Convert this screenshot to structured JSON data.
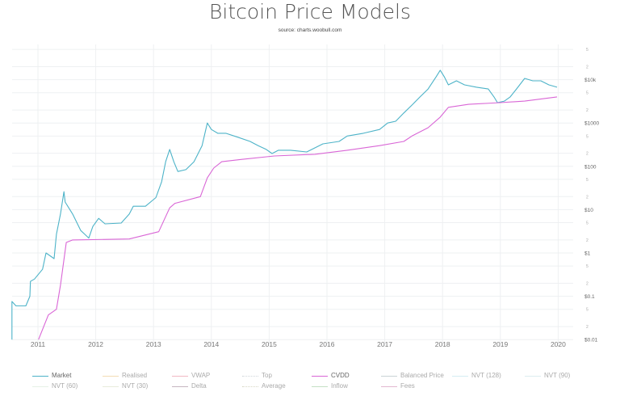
{
  "chart_data": {
    "type": "line",
    "title": "Bitcoin Price Models",
    "subtitle": "source: charts.woobull.com",
    "xlabel": "",
    "ylabel": "",
    "x_ticks": [
      "2011",
      "2012",
      "2013",
      "2014",
      "2015",
      "2016",
      "2017",
      "2018",
      "2019",
      "2020"
    ],
    "xlim": [
      2010.55,
      2020.1
    ],
    "y_scale": "log",
    "ylim": [
      0.01,
      80000
    ],
    "y_major_ticks": [
      {
        "value": 0.01,
        "label": "$0.01"
      },
      {
        "value": 0.1,
        "label": "$0.1"
      },
      {
        "value": 1,
        "label": "$1"
      },
      {
        "value": 10,
        "label": "$10"
      },
      {
        "value": 100,
        "label": "$100"
      },
      {
        "value": 1000,
        "label": "$1000"
      },
      {
        "value": 10000,
        "label": "$10k"
      }
    ],
    "y_minor_labels": [
      "2",
      "5"
    ],
    "grid": true,
    "legend_position": "bottom",
    "series": [
      {
        "name": "Market",
        "color": "#4db3c8",
        "visible": true,
        "x": [
          2010.55,
          2010.55,
          2010.62,
          2010.79,
          2010.86,
          2010.87,
          2010.94,
          2011.08,
          2011.14,
          2011.28,
          2011.32,
          2011.39,
          2011.45,
          2011.47,
          2011.6,
          2011.74,
          2011.81,
          2011.88,
          2011.95,
          2012.05,
          2012.16,
          2012.44,
          2012.58,
          2012.65,
          2012.86,
          2013.04,
          2013.14,
          2013.21,
          2013.28,
          2013.35,
          2013.42,
          2013.56,
          2013.7,
          2013.84,
          2013.93,
          2014.0,
          2014.11,
          2014.25,
          2014.46,
          2014.67,
          2014.81,
          2014.95,
          2015.05,
          2015.16,
          2015.37,
          2015.65,
          2015.93,
          2016.21,
          2016.35,
          2016.63,
          2016.91,
          2017.05,
          2017.19,
          2017.33,
          2017.47,
          2017.61,
          2017.75,
          2017.89,
          2017.96,
          2018.03,
          2018.1,
          2018.24,
          2018.38,
          2018.59,
          2018.79,
          2018.89,
          2018.95,
          2019.07,
          2019.17,
          2019.28,
          2019.42,
          2019.56,
          2019.7,
          2019.84,
          2019.98
        ],
        "y": [
          0.01,
          0.076,
          0.06,
          0.06,
          0.1,
          0.22,
          0.25,
          0.42,
          1,
          0.74,
          2.7,
          7.9,
          26,
          15,
          7.9,
          3.3,
          2.7,
          2.2,
          4.1,
          6.3,
          4.7,
          4.9,
          7.9,
          12,
          12,
          19,
          44,
          128,
          245,
          128,
          76,
          84,
          128,
          300,
          1000,
          710,
          580,
          580,
          470,
          375,
          300,
          245,
          197,
          235,
          235,
          215,
          330,
          375,
          500,
          580,
          710,
          1000,
          1100,
          1700,
          2600,
          4000,
          6100,
          11700,
          16500,
          11700,
          7600,
          9400,
          7600,
          6700,
          6100,
          4000,
          2950,
          3200,
          4000,
          6100,
          10700,
          9400,
          9400,
          7600,
          6700
        ]
      },
      {
        "name": "Realised",
        "color": "#f3dcb4",
        "visible": false
      },
      {
        "name": "VWAP",
        "color": "#f1b8c4",
        "visible": false
      },
      {
        "name": "Top",
        "color": "#cfd6da",
        "visible": false,
        "dashed": true
      },
      {
        "name": "CVDD",
        "color": "#d966d6",
        "visible": true,
        "x": [
          2011.01,
          2011.18,
          2011.32,
          2011.39,
          2011.49,
          2011.6,
          2012.58,
          2013.09,
          2013.28,
          2013.37,
          2013.81,
          2013.93,
          2014.04,
          2014.18,
          2014.53,
          2015.09,
          2015.79,
          2016.35,
          2016.91,
          2017.33,
          2017.47,
          2017.75,
          2017.96,
          2018.1,
          2018.45,
          2019.0,
          2019.42,
          2019.98
        ],
        "y": [
          0.01,
          0.037,
          0.05,
          0.18,
          1.75,
          2.0,
          2.1,
          3.1,
          11,
          14,
          20,
          54,
          91,
          128,
          145,
          173,
          190,
          235,
          300,
          375,
          500,
          780,
          1370,
          2300,
          2700,
          2950,
          3200,
          4000
        ]
      },
      {
        "name": "Balanced Price",
        "color": "#c9d3d6",
        "visible": false
      },
      {
        "name": "NVT (128)",
        "color": "#d4ecf3",
        "visible": false
      },
      {
        "name": "NVT (90)",
        "color": "#dcecf0",
        "visible": false
      },
      {
        "name": "NVT (60)",
        "color": "#e6f1e6",
        "visible": false
      },
      {
        "name": "NVT (30)",
        "color": "#e8ecdc",
        "visible": false
      },
      {
        "name": "Delta",
        "color": "#c6b6c0",
        "visible": false
      },
      {
        "name": "Average",
        "color": "#d8d8c4",
        "visible": false,
        "dashed": true
      },
      {
        "name": "Inflow",
        "color": "#c5e0c5",
        "visible": false
      },
      {
        "name": "Fees",
        "color": "#e3b8d0",
        "visible": false
      }
    ]
  }
}
